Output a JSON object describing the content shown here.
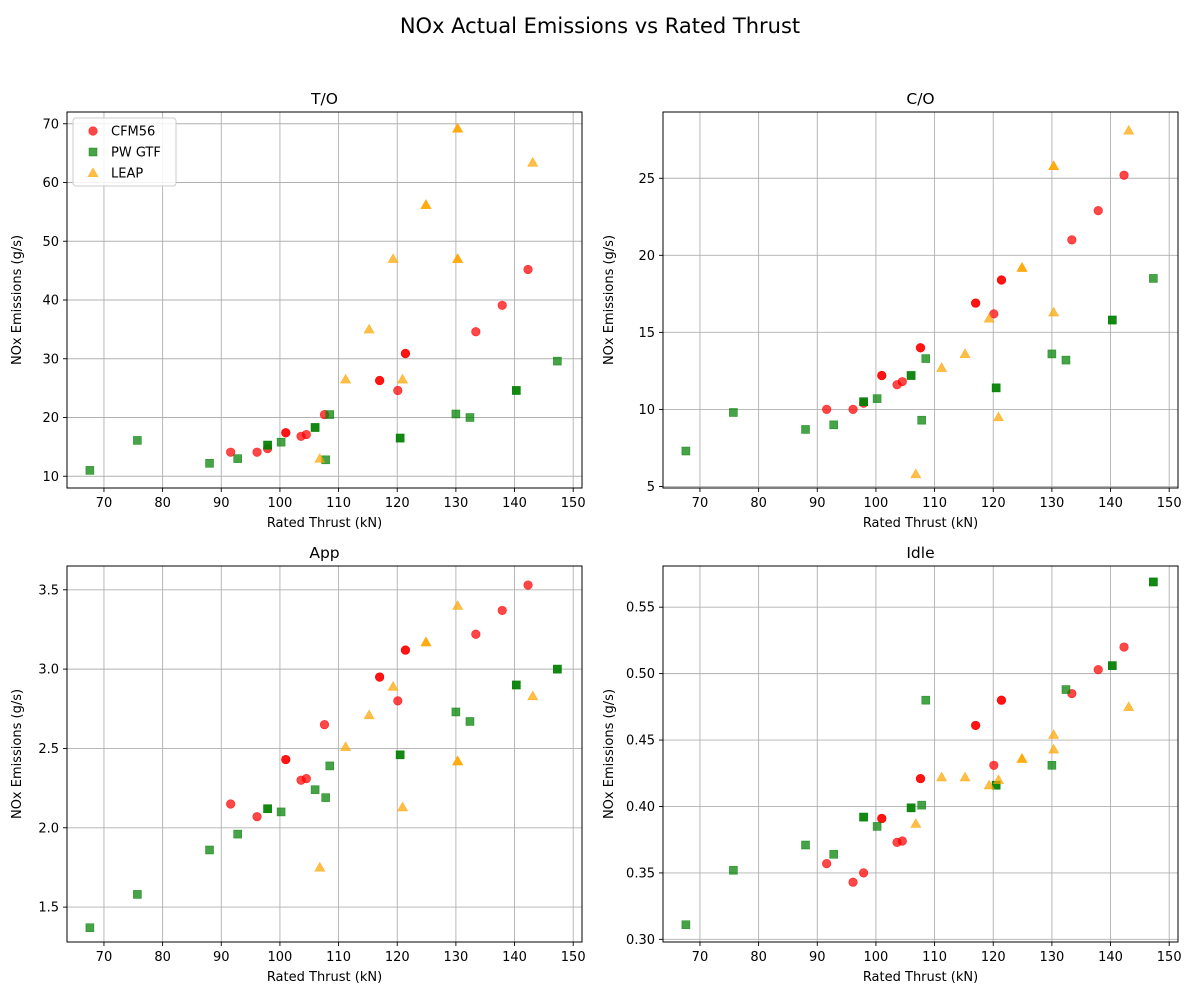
{
  "figure": {
    "suptitle": "NOx Actual Emissions vs Rated Thrust"
  },
  "colors": {
    "CFM56": "#ff0000",
    "PW GTF": "#008000",
    "LEAP": "#ffa500",
    "grid": "#b0b0b0"
  },
  "chart_data": [
    {
      "type": "scatter",
      "title": "T/O",
      "xlabel": "Rated Thrust (kN)",
      "ylabel": "NOx Emissions (g/s)",
      "xlim": [
        63.7,
        151.5
      ],
      "ylim": [
        8.0,
        72.0
      ],
      "xticks": [
        70,
        80,
        90,
        100,
        110,
        120,
        130,
        140,
        150
      ],
      "yticks": [
        10,
        20,
        30,
        40,
        50,
        60,
        70
      ],
      "ytick_labels": [
        "10",
        "20",
        "30",
        "40",
        "50",
        "60",
        "70"
      ],
      "grid": true,
      "legend": "upper left",
      "series": [
        {
          "name": "CFM56",
          "marker": "circle",
          "x": [
            91.6,
            96.1,
            97.9,
            101.0,
            101.0,
            103.6,
            104.5,
            107.6,
            117.0,
            117.0,
            120.1,
            121.4,
            121.4,
            133.4,
            137.9,
            142.3
          ],
          "y": [
            14.1,
            14.1,
            14.7,
            17.4,
            17.4,
            16.8,
            17.1,
            20.5,
            26.3,
            26.3,
            24.6,
            30.9,
            30.9,
            34.6,
            39.1,
            45.2
          ]
        },
        {
          "name": "PW GTF",
          "marker": "square",
          "x": [
            67.6,
            75.7,
            88.0,
            92.8,
            97.9,
            97.9,
            100.2,
            106.0,
            106.0,
            107.8,
            108.5,
            120.5,
            120.5,
            130.0,
            132.4,
            140.3,
            140.3,
            147.3
          ],
          "y": [
            11.0,
            16.1,
            12.2,
            13.0,
            15.3,
            15.3,
            15.8,
            18.3,
            18.3,
            12.8,
            20.5,
            16.5,
            16.5,
            20.6,
            20.0,
            24.6,
            24.6,
            29.6
          ]
        },
        {
          "name": "LEAP",
          "marker": "triangle",
          "x": [
            106.8,
            111.2,
            115.2,
            119.3,
            120.9,
            124.9,
            124.9,
            130.3,
            130.3,
            130.3,
            130.3,
            143.1
          ],
          "y": [
            13.0,
            26.5,
            35.0,
            47.0,
            26.5,
            56.2,
            56.2,
            69.2,
            69.2,
            47.0,
            47.0,
            63.4
          ]
        }
      ]
    },
    {
      "type": "scatter",
      "title": "C/O",
      "xlabel": "Rated Thrust (kN)",
      "ylabel": "NOx Emissions (g/s)",
      "xlim": [
        63.7,
        151.5
      ],
      "ylim": [
        4.9,
        29.3
      ],
      "xticks": [
        70,
        80,
        90,
        100,
        110,
        120,
        130,
        140,
        150
      ],
      "yticks": [
        5,
        10,
        15,
        20,
        25
      ],
      "ytick_labels": [
        "5",
        "10",
        "15",
        "20",
        "25"
      ],
      "grid": true,
      "series": [
        {
          "name": "CFM56",
          "marker": "circle",
          "x": [
            91.6,
            96.1,
            97.9,
            101.0,
            101.0,
            103.6,
            104.5,
            107.6,
            107.6,
            117.0,
            117.0,
            120.1,
            121.4,
            121.4,
            133.4,
            137.9,
            142.3
          ],
          "y": [
            10.0,
            10.0,
            10.4,
            12.2,
            12.2,
            11.6,
            11.8,
            14.0,
            14.0,
            16.9,
            16.9,
            16.2,
            18.4,
            18.4,
            21.0,
            22.9,
            25.2
          ]
        },
        {
          "name": "PW GTF",
          "marker": "square",
          "x": [
            67.6,
            75.7,
            88.0,
            92.8,
            97.9,
            97.9,
            100.2,
            106.0,
            106.0,
            107.8,
            108.5,
            120.5,
            120.5,
            130.0,
            132.4,
            140.3,
            140.3,
            147.3
          ],
          "y": [
            7.3,
            9.8,
            8.7,
            9.0,
            10.5,
            10.5,
            10.7,
            12.2,
            12.2,
            9.3,
            13.3,
            11.4,
            11.4,
            13.6,
            13.2,
            15.8,
            15.8,
            18.5
          ]
        },
        {
          "name": "LEAP",
          "marker": "triangle",
          "x": [
            106.8,
            111.2,
            115.2,
            119.3,
            120.9,
            124.9,
            124.9,
            130.3,
            130.3,
            130.3,
            143.1
          ],
          "y": [
            5.8,
            12.7,
            13.6,
            15.9,
            9.5,
            19.2,
            19.2,
            25.8,
            25.8,
            16.3,
            28.1
          ]
        }
      ]
    },
    {
      "type": "scatter",
      "title": "App",
      "xlabel": "Rated Thrust (kN)",
      "ylabel": "NOx Emissions (g/s)",
      "xlim": [
        63.7,
        151.5
      ],
      "ylim": [
        1.28,
        3.65
      ],
      "xticks": [
        70,
        80,
        90,
        100,
        110,
        120,
        130,
        140,
        150
      ],
      "yticks": [
        1.5,
        2.0,
        2.5,
        3.0,
        3.5
      ],
      "ytick_labels": [
        "1.5",
        "2.0",
        "2.5",
        "3.0",
        "3.5"
      ],
      "grid": true,
      "series": [
        {
          "name": "CFM56",
          "marker": "circle",
          "x": [
            91.6,
            96.1,
            101.0,
            101.0,
            103.6,
            104.5,
            107.6,
            117.0,
            117.0,
            120.1,
            121.4,
            121.4,
            133.4,
            137.9,
            142.3
          ],
          "y": [
            2.15,
            2.07,
            2.43,
            2.43,
            2.3,
            2.31,
            2.65,
            2.95,
            2.95,
            2.8,
            3.12,
            3.12,
            3.22,
            3.37,
            3.53
          ]
        },
        {
          "name": "PW GTF",
          "marker": "square",
          "x": [
            67.6,
            75.7,
            88.0,
            92.8,
            97.9,
            97.9,
            100.2,
            106.0,
            107.8,
            108.5,
            120.5,
            120.5,
            130.0,
            132.4,
            140.3,
            140.3,
            147.3,
            147.3
          ],
          "y": [
            1.37,
            1.58,
            1.86,
            1.96,
            2.12,
            2.12,
            2.1,
            2.24,
            2.19,
            2.39,
            2.46,
            2.46,
            2.73,
            2.67,
            2.9,
            2.9,
            3.0,
            3.0
          ]
        },
        {
          "name": "LEAP",
          "marker": "triangle",
          "x": [
            106.8,
            111.2,
            115.2,
            119.3,
            120.9,
            124.9,
            124.9,
            130.3,
            130.3,
            130.3,
            143.1
          ],
          "y": [
            1.75,
            2.51,
            2.71,
            2.89,
            2.13,
            3.17,
            3.17,
            3.4,
            2.42,
            2.42,
            2.83
          ]
        }
      ]
    },
    {
      "type": "scatter",
      "title": "Idle",
      "xlabel": "Rated Thrust (kN)",
      "ylabel": "NOx Emissions (g/s)",
      "xlim": [
        63.7,
        151.5
      ],
      "ylim": [
        0.298,
        0.581
      ],
      "xticks": [
        70,
        80,
        90,
        100,
        110,
        120,
        130,
        140,
        150
      ],
      "yticks": [
        0.3,
        0.35,
        0.4,
        0.45,
        0.5,
        0.55
      ],
      "ytick_labels": [
        "0.30",
        "0.35",
        "0.40",
        "0.45",
        "0.50",
        "0.55"
      ],
      "grid": true,
      "series": [
        {
          "name": "CFM56",
          "marker": "circle",
          "x": [
            91.6,
            96.1,
            97.9,
            101.0,
            101.0,
            103.6,
            104.5,
            107.6,
            107.6,
            117.0,
            117.0,
            120.1,
            121.4,
            121.4,
            133.4,
            137.9,
            142.3
          ],
          "y": [
            0.357,
            0.343,
            0.35,
            0.391,
            0.391,
            0.373,
            0.374,
            0.421,
            0.421,
            0.461,
            0.461,
            0.431,
            0.48,
            0.48,
            0.485,
            0.503,
            0.52
          ]
        },
        {
          "name": "PW GTF",
          "marker": "square",
          "x": [
            67.6,
            75.7,
            88.0,
            92.8,
            97.9,
            97.9,
            100.2,
            106.0,
            106.0,
            107.8,
            108.5,
            120.5,
            120.5,
            130.0,
            132.4,
            140.3,
            140.3,
            147.3,
            147.3
          ],
          "y": [
            0.311,
            0.352,
            0.371,
            0.364,
            0.392,
            0.392,
            0.385,
            0.399,
            0.399,
            0.401,
            0.48,
            0.416,
            0.416,
            0.431,
            0.488,
            0.506,
            0.506,
            0.569,
            0.569
          ]
        },
        {
          "name": "LEAP",
          "marker": "triangle",
          "x": [
            106.8,
            111.2,
            115.2,
            119.3,
            120.9,
            124.9,
            124.9,
            130.3,
            130.3,
            143.1
          ],
          "y": [
            0.387,
            0.422,
            0.422,
            0.416,
            0.42,
            0.436,
            0.436,
            0.454,
            0.443,
            0.475
          ]
        }
      ]
    }
  ]
}
